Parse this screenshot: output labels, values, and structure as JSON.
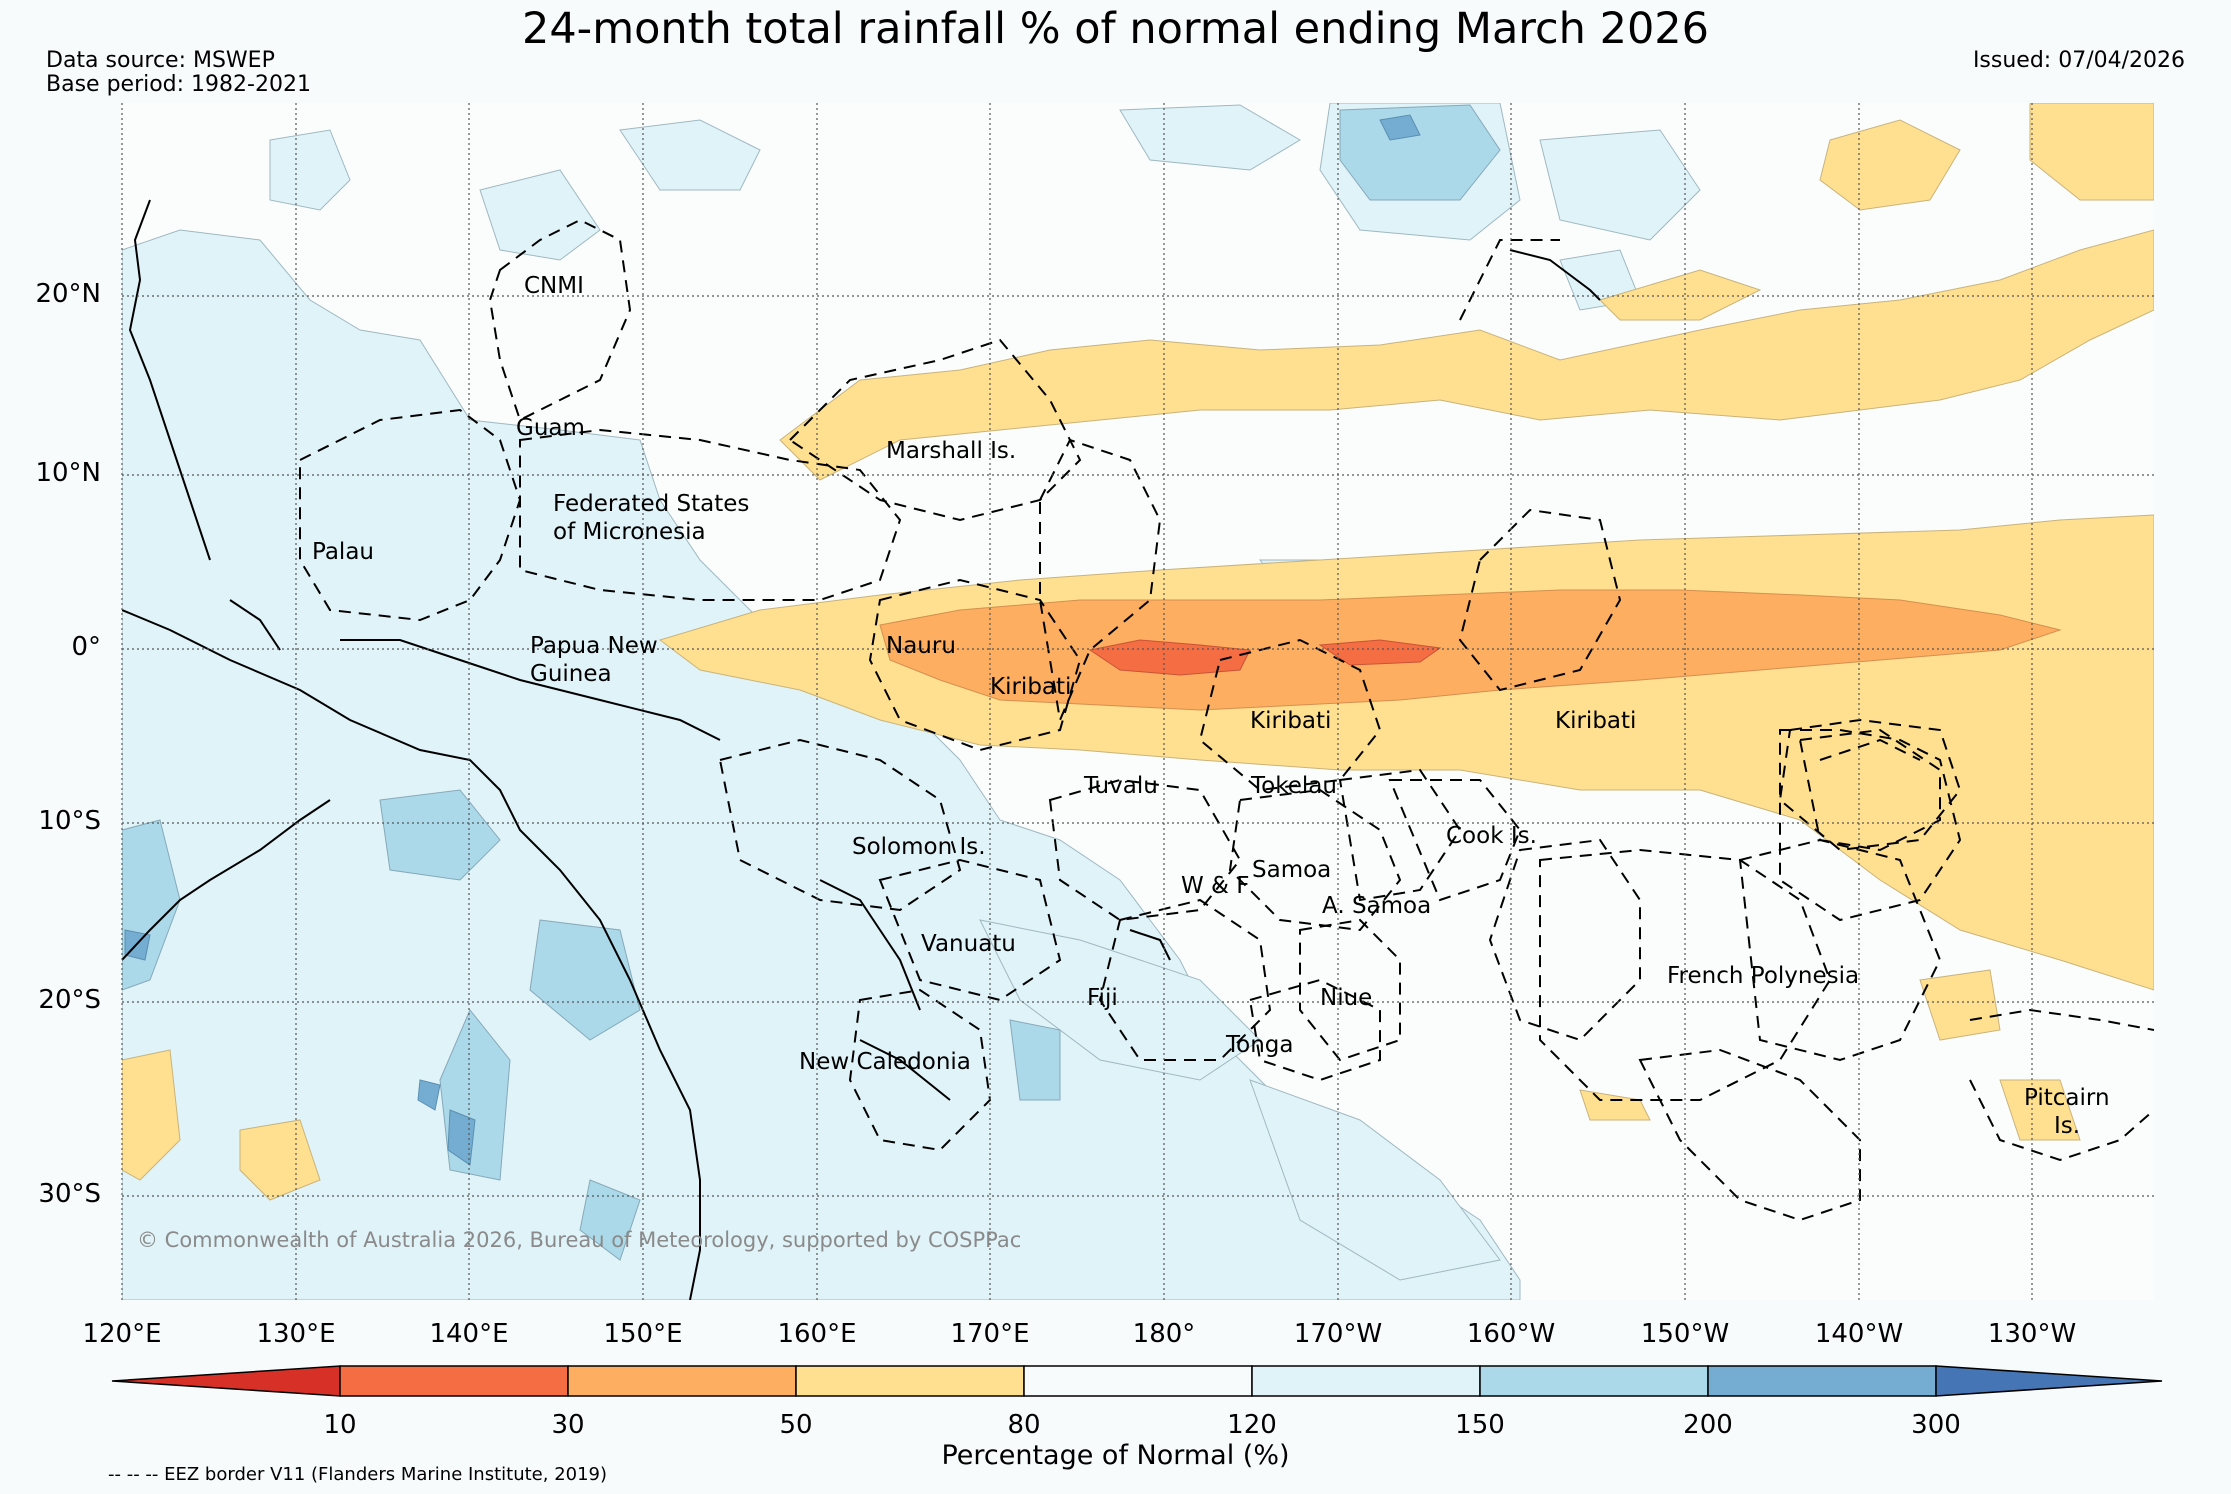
{
  "title": "24-month total rainfall % of normal ending March 2026",
  "data_source": "Data source: MSWEP",
  "base_period": "Base period: 1982-2021",
  "issued": "Issued: 07/04/2026",
  "lat_labels": [
    "20°N",
    "10°N",
    "0°",
    "10°S",
    "20°S",
    "30°S"
  ],
  "lon_labels": [
    "120°E",
    "130°E",
    "140°E",
    "150°E",
    "160°E",
    "170°E",
    "180°",
    "170°W",
    "160°W",
    "150°W",
    "140°W",
    "130°W"
  ],
  "places": {
    "cnmi": "CNMI",
    "guam": "Guam",
    "marshall": "Marshall Is.",
    "fsm_line1": "Federated States",
    "fsm_line2": "of Micronesia",
    "palau": "Palau",
    "png_line1": "Papua New",
    "png_line2": "Guinea",
    "nauru": "Nauru",
    "kiribati_west": "Kiribati",
    "kiribati_central": "Kiribati",
    "kiribati_east": "Kiribati",
    "tuvalu": "Tuvalu",
    "tokelau": "Tokelau",
    "cook": "Cook Is.",
    "solomon": "Solomon Is.",
    "samoa": "Samoa",
    "wf": "W & F",
    "asamoa": "A. Samoa",
    "vanuatu": "Vanuatu",
    "fiji": "Fiji",
    "niue": "Niue",
    "tonga": "Tonga",
    "french_polynesia": "French Polynesia",
    "new_caledonia": "New Caledonia",
    "pitcairn_line1": "Pitcairn",
    "pitcairn_line2": "Is."
  },
  "credit": "© Commonwealth of Australia 2026, Bureau of Meteorology, supported by COSPPac",
  "colorbar": {
    "ticks": [
      "10",
      "30",
      "50",
      "80",
      "120",
      "150",
      "200",
      "300"
    ],
    "colors": [
      "#d73027",
      "#f46d43",
      "#fdae61",
      "#fee090",
      "#f7fbfc",
      "#e0f3f8",
      "#abd9e9",
      "#74add1",
      "#4575b4"
    ],
    "label": "Percentage of Normal (%)"
  },
  "eez_note": "-- -- -- EEZ border V11 (Flanders Marine Institute, 2019)"
}
